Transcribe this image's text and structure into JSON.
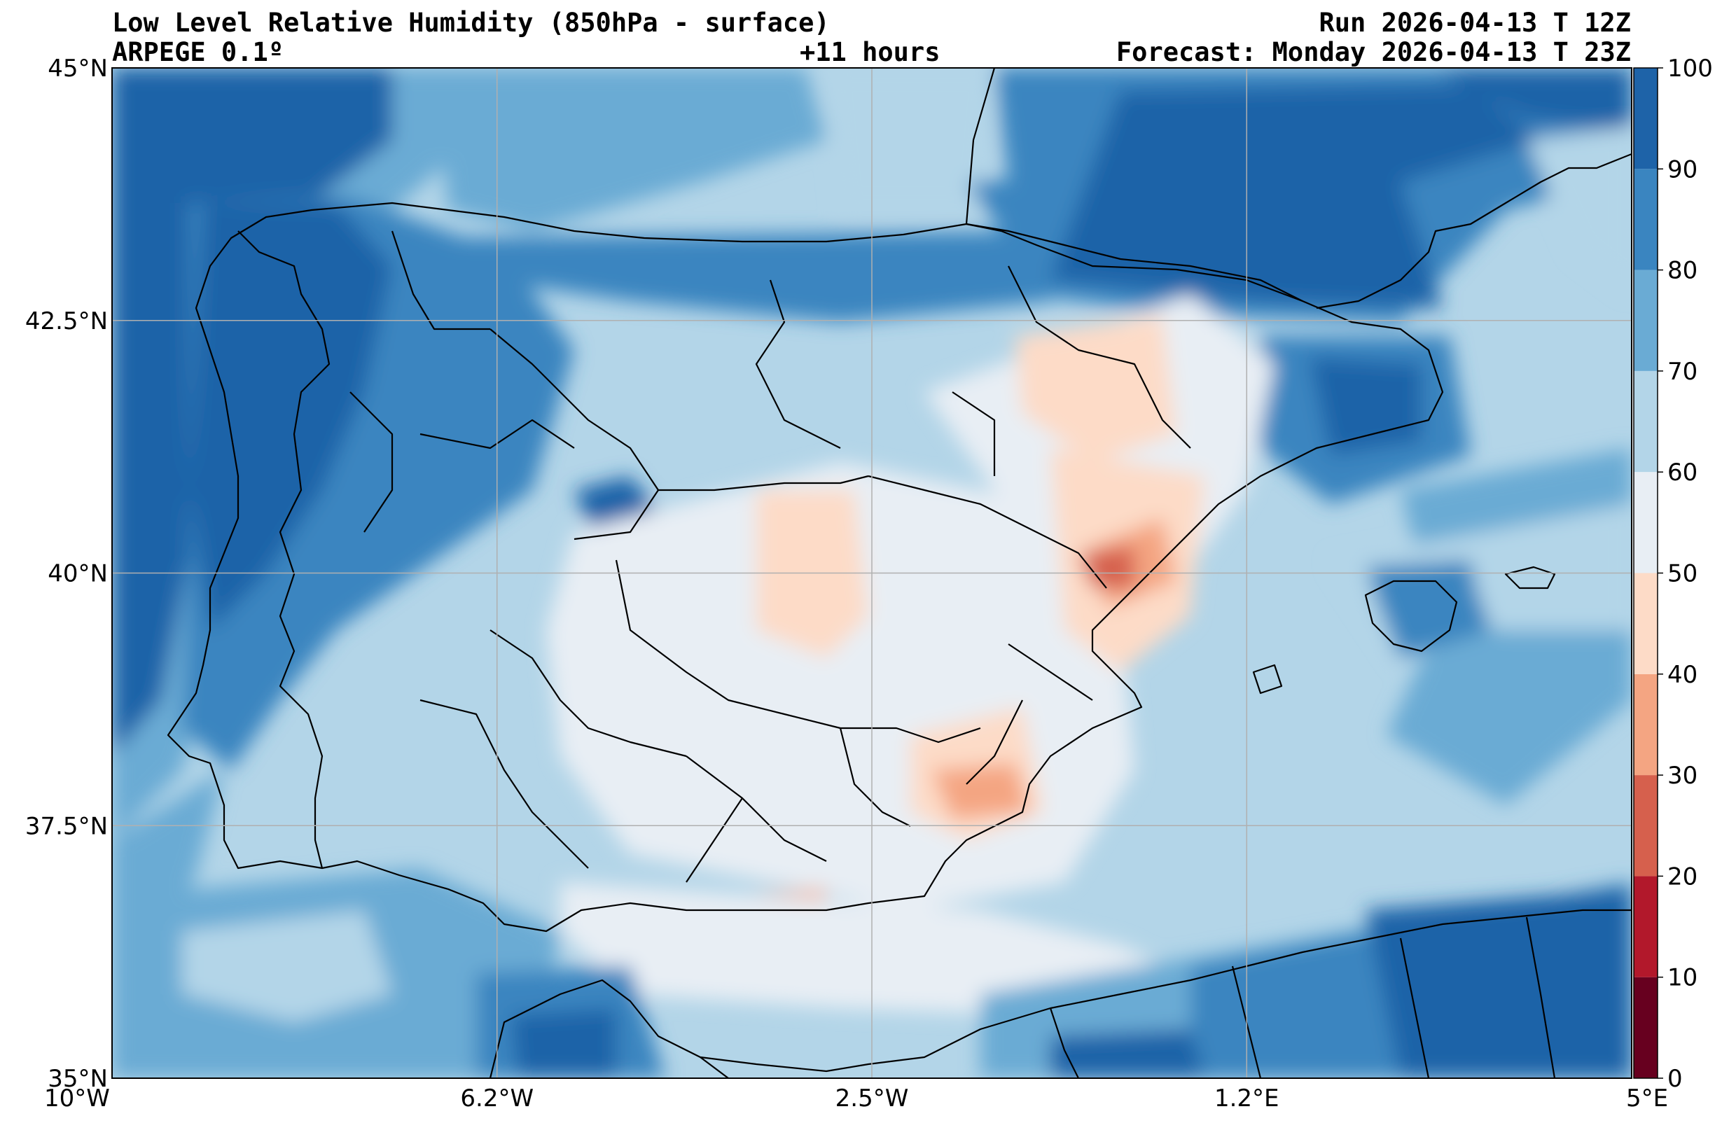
{
  "header": {
    "title": "Low Level Relative Humidity (850hPa - surface)",
    "model": "ARPEGE 0.1º",
    "lead_time": "+11 hours",
    "run": "Run 2026-04-13 T 12Z",
    "forecast": "Forecast: Monday 2026-04-13 T 23Z"
  },
  "map": {
    "lon_range": [
      -10,
      5
    ],
    "lat_range": [
      35,
      45
    ],
    "lon_ticks": [
      {
        "value": -10,
        "label": "10°W"
      },
      {
        "value": -6.2,
        "label": "6.2°W"
      },
      {
        "value": -2.5,
        "label": "2.5°W"
      },
      {
        "value": 1.2,
        "label": "1.2°E"
      },
      {
        "value": 5,
        "label": "5°E"
      }
    ],
    "lat_ticks": [
      {
        "value": 45,
        "label": "45°N"
      },
      {
        "value": 42.5,
        "label": "42.5°N"
      },
      {
        "value": 40,
        "label": "40°N"
      },
      {
        "value": 37.5,
        "label": "37.5°N"
      },
      {
        "value": 35,
        "label": "35°N"
      }
    ],
    "grid": true
  },
  "colorbar": {
    "levels": [
      0,
      10,
      20,
      30,
      40,
      50,
      60,
      70,
      80,
      90,
      100
    ],
    "labels": [
      "0",
      "10",
      "20",
      "30",
      "40",
      "50",
      "60",
      "70",
      "80",
      "90",
      "100"
    ],
    "colors": [
      "#67001f",
      "#b2182b",
      "#d6604d",
      "#f4a582",
      "#fddbc7",
      "#e8eef4",
      "#b3d5e8",
      "#6aabd4",
      "#3a85c0",
      "#1e63a8"
    ]
  }
}
